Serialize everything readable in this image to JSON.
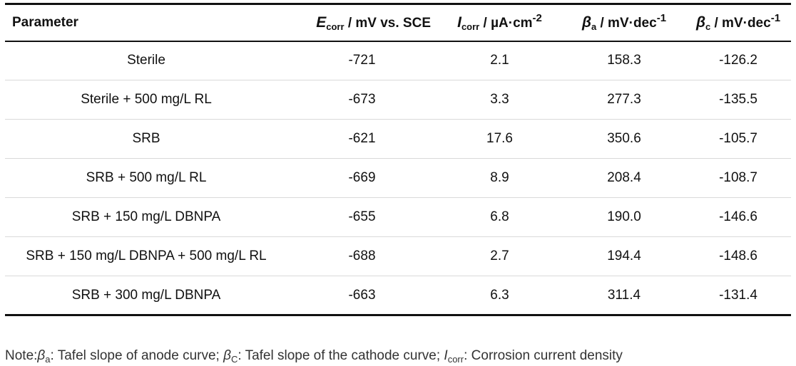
{
  "table": {
    "headers": {
      "parameter": "Parameter",
      "ecorr": {
        "symbol": "E",
        "sub": "corr",
        "unit": " / mV vs. SCE"
      },
      "icorr": {
        "symbol": "I",
        "sub": "corr",
        "unit": " / µA·cm",
        "sup": "-2"
      },
      "beta_a": {
        "symbol": "β",
        "sub": "a",
        "unit": " / mV·dec",
        "sup": "-1"
      },
      "beta_c": {
        "symbol": "β",
        "sub": "c",
        "unit": " / mV·dec",
        "sup": "-1"
      }
    },
    "rows": [
      {
        "parameter": "Sterile",
        "ecorr": "-721",
        "icorr": "2.1",
        "beta_a": "158.3",
        "beta_c": "-126.2"
      },
      {
        "parameter": "Sterile + 500 mg/L RL",
        "ecorr": "-673",
        "icorr": "3.3",
        "beta_a": "277.3",
        "beta_c": "-135.5"
      },
      {
        "parameter": "SRB",
        "ecorr": "-621",
        "icorr": "17.6",
        "beta_a": "350.6",
        "beta_c": "-105.7"
      },
      {
        "parameter": "SRB + 500 mg/L RL",
        "ecorr": "-669",
        "icorr": "8.9",
        "beta_a": "208.4",
        "beta_c": "-108.7"
      },
      {
        "parameter": "SRB + 150 mg/L DBNPA",
        "ecorr": "-655",
        "icorr": "6.8",
        "beta_a": "190.0",
        "beta_c": "-146.6"
      },
      {
        "parameter": "SRB + 150 mg/L DBNPA + 500 mg/L RL",
        "ecorr": "-688",
        "icorr": "2.7",
        "beta_a": "194.4",
        "beta_c": "-148.6"
      },
      {
        "parameter": "SRB + 300 mg/L DBNPA",
        "ecorr": "-663",
        "icorr": "6.3",
        "beta_a": "311.4",
        "beta_c": "-131.4"
      }
    ]
  },
  "note": {
    "prefix": "Note:",
    "beta_a_symbol": "β",
    "beta_a_sub": "a",
    "beta_a_text": ": Tafel slope of anode curve; ",
    "beta_c_symbol": "β",
    "beta_c_sub": "C",
    "beta_c_text": ": Tafel slope of the cathode curve; ",
    "icorr_symbol": "I",
    "icorr_sub": "corr",
    "icorr_text": ": Corrosion current density"
  }
}
